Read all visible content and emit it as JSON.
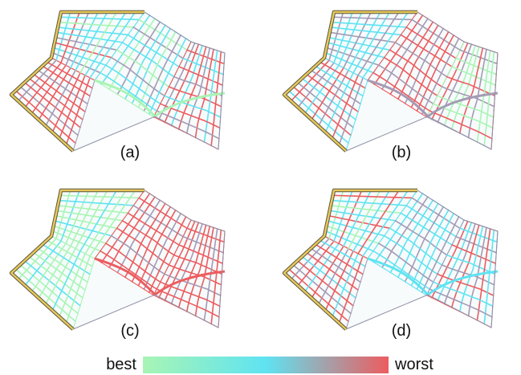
{
  "panels": [
    {
      "id": "a",
      "label": "(a)",
      "scheme": "a"
    },
    {
      "id": "b",
      "label": "(b)",
      "scheme": "b"
    },
    {
      "id": "c",
      "label": "(c)",
      "scheme": "c"
    },
    {
      "id": "d",
      "label": "(d)",
      "scheme": "d"
    }
  ],
  "legend": {
    "best_label": "best",
    "worst_label": "worst",
    "gradient_colors": [
      "#a8f5b4",
      "#5fe3f2",
      "#ec5c5f"
    ]
  },
  "colors": {
    "boundary_yellow": "#e7c85a",
    "grid_gray": "#8f8fa6",
    "green": "#a8f5b4",
    "cyan": "#5fe3f2",
    "red": "#ec5c5f",
    "purple_gray": "#a59ab4"
  }
}
